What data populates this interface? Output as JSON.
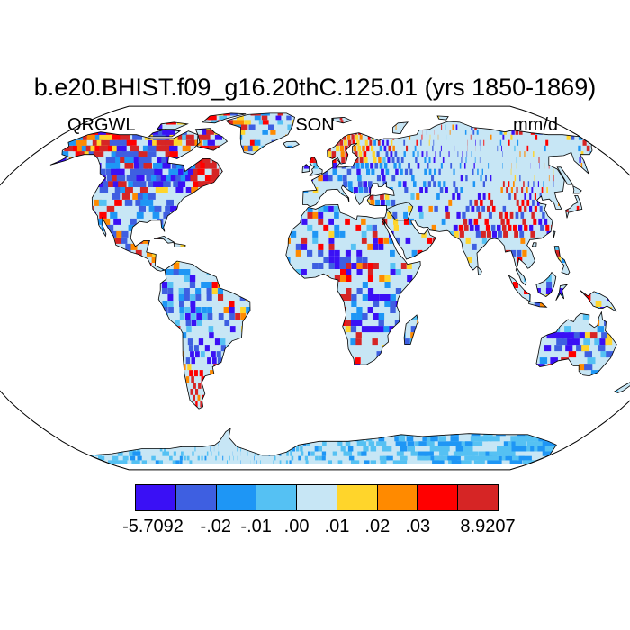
{
  "title": "b.e20.BHIST.f09_g16.20thC.125.01 (yrs 1850-1869)",
  "subtitle_left": "QRGWL",
  "subtitle_center": "SON",
  "subtitle_right": "mm/d",
  "projection": "robinson",
  "colorbar": {
    "colors": [
      "#3a10f5",
      "#3e5fe1",
      "#1e96f5",
      "#55c1f3",
      "#c7e6f5",
      "#ffd52b",
      "#ff8a00",
      "#ff0000",
      "#d62525"
    ],
    "labels": [
      "-5.7092",
      "-.02",
      "-.01",
      ".00",
      ".01",
      ".02",
      ".03",
      "8.9207"
    ]
  }
}
